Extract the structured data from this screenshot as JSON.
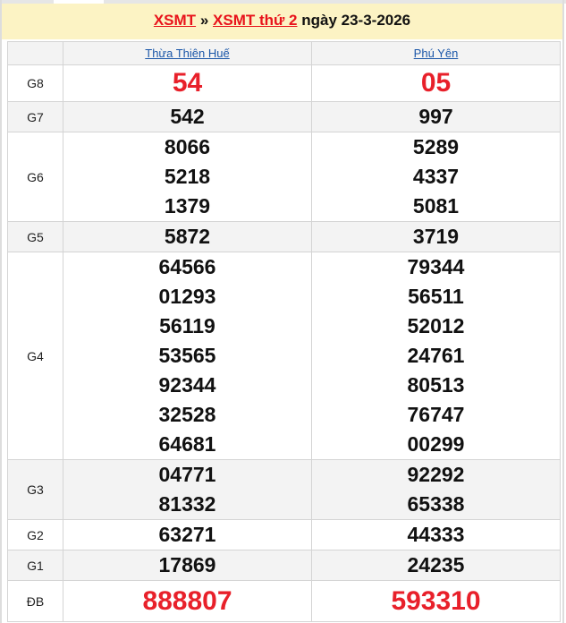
{
  "header": {
    "link1": "XSMT",
    "sep": "»",
    "link2": "XSMT thứ 2",
    "date": "ngày 23-3-2026"
  },
  "columns": [
    "Thừa Thiên Huế",
    "Phú Yên"
  ],
  "prizes": [
    {
      "label": "G8",
      "special": true,
      "c1": [
        "54"
      ],
      "c2": [
        "05"
      ]
    },
    {
      "label": "G7",
      "c1": [
        "542"
      ],
      "c2": [
        "997"
      ]
    },
    {
      "label": "G6",
      "c1": [
        "8066",
        "5218",
        "1379"
      ],
      "c2": [
        "5289",
        "4337",
        "5081"
      ]
    },
    {
      "label": "G5",
      "c1": [
        "5872"
      ],
      "c2": [
        "3719"
      ]
    },
    {
      "label": "G4",
      "c1": [
        "64566",
        "01293",
        "56119",
        "53565",
        "92344",
        "32528",
        "64681"
      ],
      "c2": [
        "79344",
        "56511",
        "52012",
        "24761",
        "80513",
        "76747",
        "00299"
      ]
    },
    {
      "label": "G3",
      "c1": [
        "04771",
        "81332"
      ],
      "c2": [
        "92292",
        "65338"
      ]
    },
    {
      "label": "G2",
      "c1": [
        "63271"
      ],
      "c2": [
        "44333"
      ]
    },
    {
      "label": "G1",
      "c1": [
        "17869"
      ],
      "c2": [
        "24235"
      ]
    },
    {
      "label": "ĐB",
      "special": true,
      "c1": [
        "888807"
      ],
      "c2": [
        "593310"
      ]
    }
  ],
  "colors": {
    "red": "#e8202a",
    "link": "#1a56a8",
    "header_bg": "#fcf3c4"
  }
}
